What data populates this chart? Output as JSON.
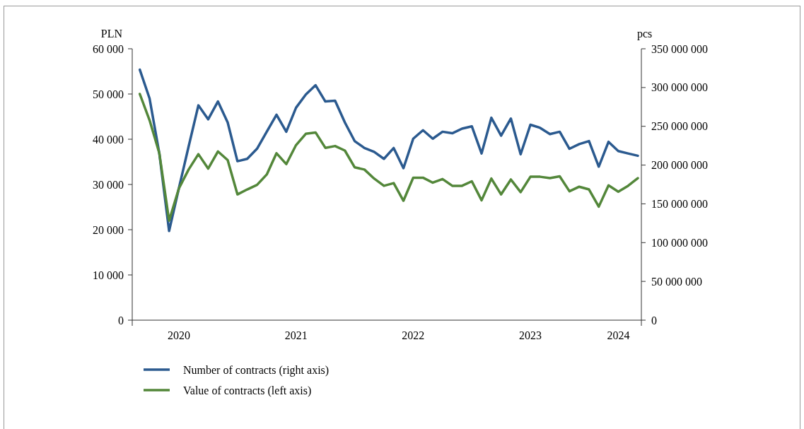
{
  "chart_data": {
    "type": "line",
    "ylabel": "PLN",
    "y2label": "pcs",
    "categories": [
      null,
      null,
      null,
      null,
      "2020",
      null,
      null,
      null,
      null,
      null,
      null,
      null,
      null,
      null,
      null,
      null,
      "2021",
      null,
      null,
      null,
      null,
      null,
      null,
      null,
      null,
      null,
      null,
      null,
      "2022",
      null,
      null,
      null,
      null,
      null,
      null,
      null,
      null,
      null,
      null,
      null,
      "2023",
      null,
      null,
      null,
      null,
      null,
      null,
      null,
      null,
      "2024",
      null,
      null
    ],
    "ylim": [
      0,
      60000
    ],
    "yticks": [
      {
        "value": 0,
        "label": "0"
      },
      {
        "value": 10000,
        "label": "10 000"
      },
      {
        "value": 20000,
        "label": "20 000"
      },
      {
        "value": 30000,
        "label": "30 000"
      },
      {
        "value": 40000,
        "label": "40 000"
      },
      {
        "value": 50000,
        "label": "50 000"
      },
      {
        "value": 60000,
        "label": "60 000"
      }
    ],
    "y2lim": [
      0,
      350000000
    ],
    "y2ticks": [
      {
        "value": 0,
        "label": "0"
      },
      {
        "value": 50000000,
        "label": "50 000 000"
      },
      {
        "value": 100000000,
        "label": "100 000 000"
      },
      {
        "value": 150000000,
        "label": "150 000 000"
      },
      {
        "value": 200000000,
        "label": "200 000 000"
      },
      {
        "value": 250000000,
        "label": "250 000 000"
      },
      {
        "value": 300000000,
        "label": "300 000 000"
      },
      {
        "value": 350000000,
        "label": "350 000 000"
      }
    ],
    "series": [
      {
        "name": "Number of contracts (right axis)",
        "color": "#2b5a8f",
        "axis": "y2",
        "values": [
          323000000,
          286000000,
          215000000,
          115000000,
          170000000,
          224000000,
          277000000,
          259000000,
          282000000,
          255000000,
          205000000,
          208000000,
          221000000,
          243000000,
          265000000,
          243000000,
          274000000,
          291000000,
          303000000,
          282000000,
          283000000,
          255000000,
          231000000,
          222000000,
          217000000,
          208000000,
          222000000,
          196000000,
          234000000,
          245000000,
          234000000,
          243000000,
          241000000,
          247000000,
          250000000,
          215000000,
          261000000,
          238000000,
          260000000,
          214000000,
          252000000,
          248000000,
          240000000,
          243000000,
          221000000,
          227000000,
          231000000,
          198000000,
          230000000,
          218000000,
          215000000,
          212000000
        ]
      },
      {
        "name": "Value of contracts (left axis)",
        "color": "#53873a",
        "values": [
          50000,
          44200,
          36900,
          22000,
          29100,
          33300,
          36700,
          33500,
          37300,
          35400,
          27800,
          28900,
          29900,
          32200,
          36900,
          34500,
          38700,
          41200,
          41500,
          38100,
          38500,
          37500,
          33800,
          33300,
          31300,
          29700,
          30300,
          26400,
          31500,
          31500,
          30400,
          31200,
          29700,
          29700,
          30700,
          26500,
          31300,
          27800,
          31100,
          28300,
          31700,
          31700,
          31400,
          31800,
          28500,
          29500,
          28900,
          25100,
          29800,
          28400,
          29700,
          31400
        ]
      }
    ],
    "legend": "bottom left",
    "grid": false,
    "marker": "none",
    "line_style": "solid"
  }
}
